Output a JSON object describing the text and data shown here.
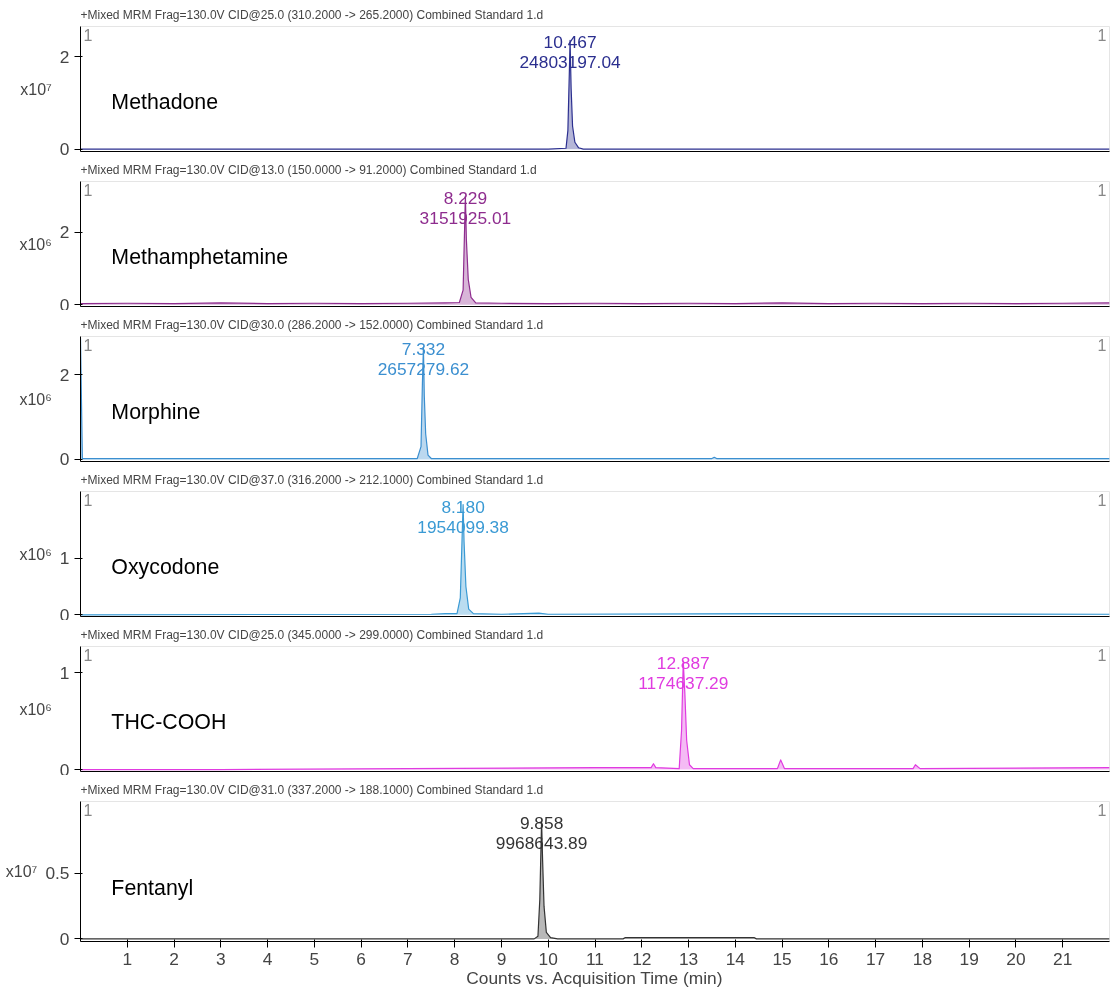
{
  "chart_data": [
    {
      "type": "area",
      "title": "+Mixed MRM Frag=130.0V CID@25.0 (310.2000 -> 265.2000) Combined Standard 1.d",
      "ylabel": "x10⁷",
      "xlim": [
        0,
        22
      ],
      "ylim": [
        -0.05,
        2.65
      ],
      "yticks": [
        0,
        2
      ],
      "tick_labels": "y",
      "series": [
        {
          "name": "Methadone",
          "color": "#2b2f8f",
          "x": [
            0,
            10.0,
            10.38,
            10.42,
            10.45,
            10.467,
            10.49,
            10.52,
            10.57,
            10.65,
            10.75,
            22
          ],
          "values": [
            0,
            0,
            0.02,
            0.4,
            1.6,
            2.35,
            1.3,
            0.5,
            0.15,
            0.03,
            0,
            0
          ]
        }
      ],
      "annotations": [
        "1",
        "1",
        {
          "text": "10.467",
          "x": 10.467,
          "y": 2.35
        },
        {
          "text": "24803197.04",
          "x": 10.467,
          "y": 2.35
        }
      ]
    },
    {
      "type": "area",
      "title": "+Mixed MRM Frag=130.0V CID@13.0 (150.0000 -> 91.2000) Combined Standard 1.d",
      "ylabel": "x10⁶",
      "xlim": [
        0,
        22
      ],
      "ylim": [
        -0.05,
        3.4
      ],
      "yticks": [
        0,
        2
      ],
      "tick_labels": "y",
      "series": [
        {
          "name": "Methamphetamine",
          "color": "#8e2c8e",
          "x": [
            0,
            1,
            2,
            3,
            4,
            5,
            6,
            7,
            7.8,
            8.1,
            8.18,
            8.21,
            8.229,
            8.25,
            8.29,
            8.35,
            8.45,
            9,
            10,
            11,
            12,
            13,
            14,
            15,
            16,
            17,
            18,
            19,
            20,
            21,
            22
          ],
          "values": [
            0.03,
            0.04,
            0.03,
            0.05,
            0.03,
            0.04,
            0.03,
            0.04,
            0.05,
            0.06,
            0.4,
            2.0,
            3.0,
            1.8,
            0.7,
            0.2,
            0.05,
            0.04,
            0.03,
            0.04,
            0.03,
            0.04,
            0.03,
            0.05,
            0.03,
            0.04,
            0.03,
            0.04,
            0.03,
            0.04,
            0.05
          ]
        }
      ],
      "annotations": [
        "1",
        "1",
        {
          "text": "8.229",
          "x": 8.229,
          "y": 3.0
        },
        {
          "text": "3151925.01",
          "x": 8.229,
          "y": 3.0
        }
      ]
    },
    {
      "type": "area",
      "title": "+Mixed MRM Frag=130.0V CID@30.0 (286.2000 -> 152.0000) Combined Standard 1.d",
      "ylabel": "x10⁶",
      "xlim": [
        0,
        22
      ],
      "ylim": [
        -0.05,
        2.9
      ],
      "yticks": [
        0,
        2
      ],
      "tick_labels": "y",
      "series": [
        {
          "name": "Morphine",
          "color": "#3b8fd0",
          "x": [
            0,
            0.04,
            3,
            7.2,
            7.28,
            7.31,
            7.332,
            7.35,
            7.38,
            7.43,
            7.5,
            13.5,
            13.55,
            13.6,
            22
          ],
          "values": [
            2.85,
            0.02,
            0.02,
            0.02,
            0.3,
            1.8,
            2.65,
            1.5,
            0.6,
            0.1,
            0.02,
            0.02,
            0.05,
            0.02,
            0.02
          ]
        }
      ],
      "annotations": [
        "1",
        "1",
        {
          "text": "7.332",
          "x": 7.332,
          "y": 2.65
        },
        {
          "text": "2657279.62",
          "x": 7.332,
          "y": 2.65
        }
      ]
    },
    {
      "type": "area",
      "title": "+Mixed MRM Frag=130.0V CID@37.0 (316.2000 -> 212.1000) Combined Standard 1.d",
      "ylabel": "x10⁶",
      "xlim": [
        0,
        22
      ],
      "ylim": [
        -0.03,
        2.18
      ],
      "yticks": [
        0,
        1
      ],
      "tick_labels": "y",
      "series": [
        {
          "name": "Oxycodone",
          "color": "#3a9ad4",
          "x": [
            0,
            7.5,
            7.8,
            8.05,
            8.12,
            8.16,
            8.18,
            8.2,
            8.24,
            8.3,
            8.4,
            9.0,
            9.8,
            10,
            14.5,
            22
          ],
          "values": [
            0,
            0.01,
            0.02,
            0.02,
            0.3,
            1.4,
            1.95,
            1.3,
            0.5,
            0.1,
            0.02,
            0.01,
            0.03,
            0.01,
            0.02,
            0.01
          ]
        }
      ],
      "annotations": [
        "1",
        "1",
        {
          "text": "8.180",
          "x": 8.18,
          "y": 1.95
        },
        {
          "text": "1954099.38",
          "x": 8.18,
          "y": 1.95
        }
      ]
    },
    {
      "type": "area",
      "title": "+Mixed MRM Frag=130.0V CID@25.0 (345.0000 -> 299.0000) Combined Standard 1.d",
      "ylabel": "x10⁶",
      "xlim": [
        0,
        22
      ],
      "ylim": [
        -0.02,
        1.27
      ],
      "yticks": [
        0,
        1
      ],
      "tick_labels": "y",
      "series": [
        {
          "name": "THC-COOH",
          "color": "#e03be0",
          "x": [
            0,
            3,
            7,
            11,
            12.2,
            12.25,
            12.3,
            12.8,
            12.85,
            12.887,
            12.92,
            12.96,
            13.02,
            13.1,
            14.9,
            14.97,
            15.05,
            17.8,
            17.85,
            17.95,
            22
          ],
          "values": [
            0,
            0,
            0.01,
            0.02,
            0.02,
            0.06,
            0.02,
            0.01,
            0.4,
            1.12,
            0.8,
            0.3,
            0.05,
            0.01,
            0.01,
            0.1,
            0.01,
            0.01,
            0.05,
            0.01,
            0.02
          ]
        }
      ],
      "annotations": [
        "1",
        "1",
        {
          "text": "12.887",
          "x": 12.887,
          "y": 1.12
        },
        {
          "text": "1174637.29",
          "x": 12.887,
          "y": 1.12
        }
      ]
    },
    {
      "type": "area",
      "title": "+Mixed MRM Frag=130.0V CID@31.0 (337.2000 -> 188.1000) Combined Standard 1.d",
      "ylabel": "x10⁷",
      "xlabel": "Counts vs. Acquisition Time (min)",
      "xlim": [
        0,
        22
      ],
      "ylim": [
        -0.02,
        1.05
      ],
      "yticks": [
        0,
        0.5
      ],
      "xticks": [
        1,
        2,
        3,
        4,
        5,
        6,
        7,
        8,
        9,
        10,
        11,
        12,
        13,
        14,
        15,
        16,
        17,
        18,
        19,
        20,
        21
      ],
      "series": [
        {
          "name": "Fentanyl",
          "color": "#333333",
          "x": [
            0,
            9.7,
            9.78,
            9.82,
            9.858,
            9.88,
            9.91,
            9.96,
            10.05,
            10.2,
            11.6,
            11.65,
            12.2,
            14.4,
            14.45,
            22
          ],
          "values": [
            0,
            0,
            0.02,
            0.3,
            0.9,
            0.6,
            0.25,
            0.05,
            0.01,
            0,
            0,
            0.01,
            0.01,
            0.01,
            0,
            0
          ]
        }
      ],
      "annotations": [
        "1",
        "1",
        {
          "text": "9.858",
          "x": 9.858,
          "y": 0.9
        },
        {
          "text": "9968643.89",
          "x": 9.858,
          "y": 0.9
        }
      ]
    }
  ]
}
